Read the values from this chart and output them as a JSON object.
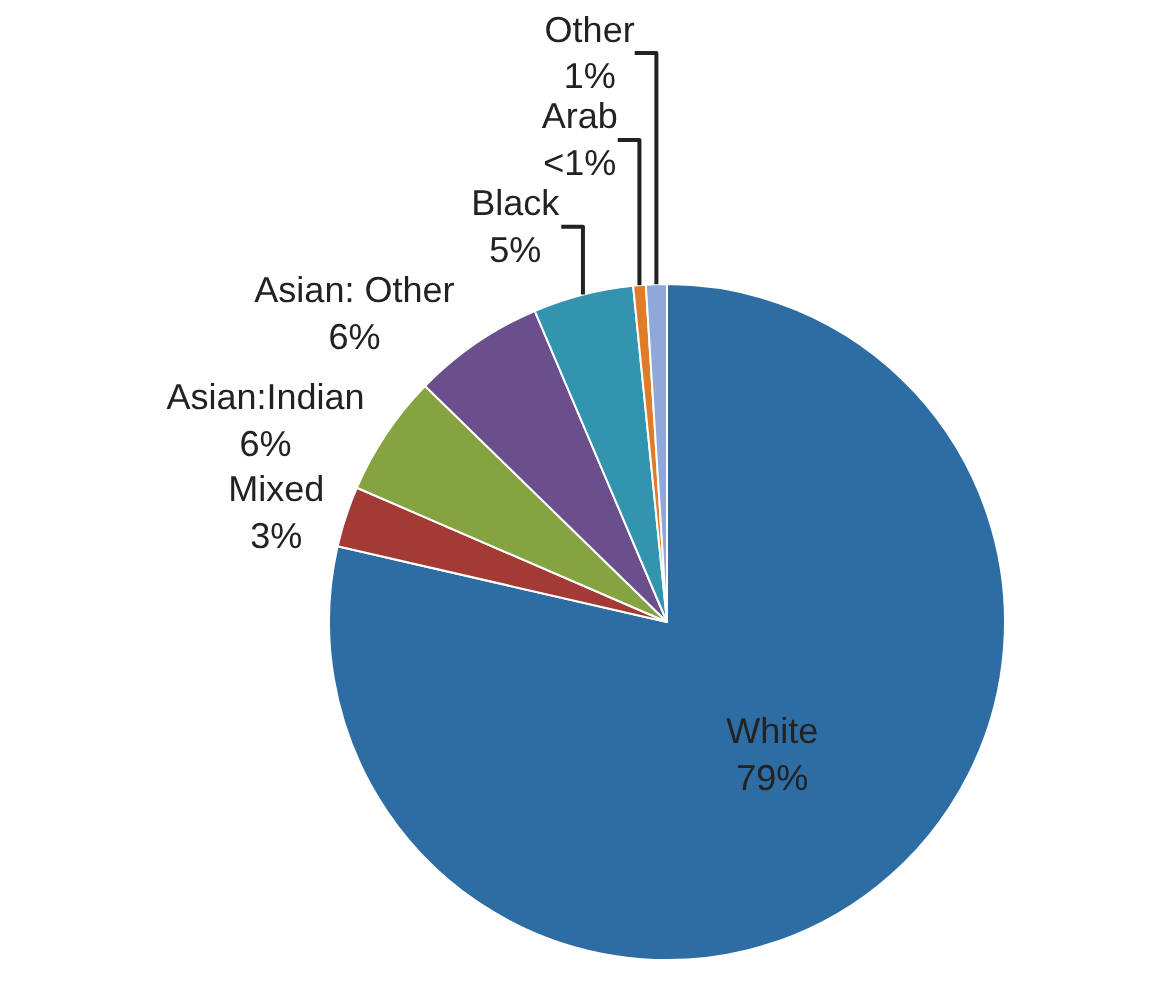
{
  "chart_data": {
    "type": "pie",
    "categories": [
      "White",
      "Mixed",
      "Asian:Indian",
      "Asian: Other",
      "Black",
      "Arab",
      "Other"
    ],
    "values": [
      78.6,
      2.9,
      5.8,
      6.3,
      4.8,
      0.6,
      1.0
    ],
    "value_labels": [
      "79%",
      "3%",
      "6%",
      "6%",
      "5%",
      "<1%",
      "1%"
    ],
    "colors": [
      "#2e6da4",
      "#a33a36",
      "#86a342",
      "#6b4f8c",
      "#3294ae",
      "#e07b27",
      "#8da8d9"
    ]
  }
}
